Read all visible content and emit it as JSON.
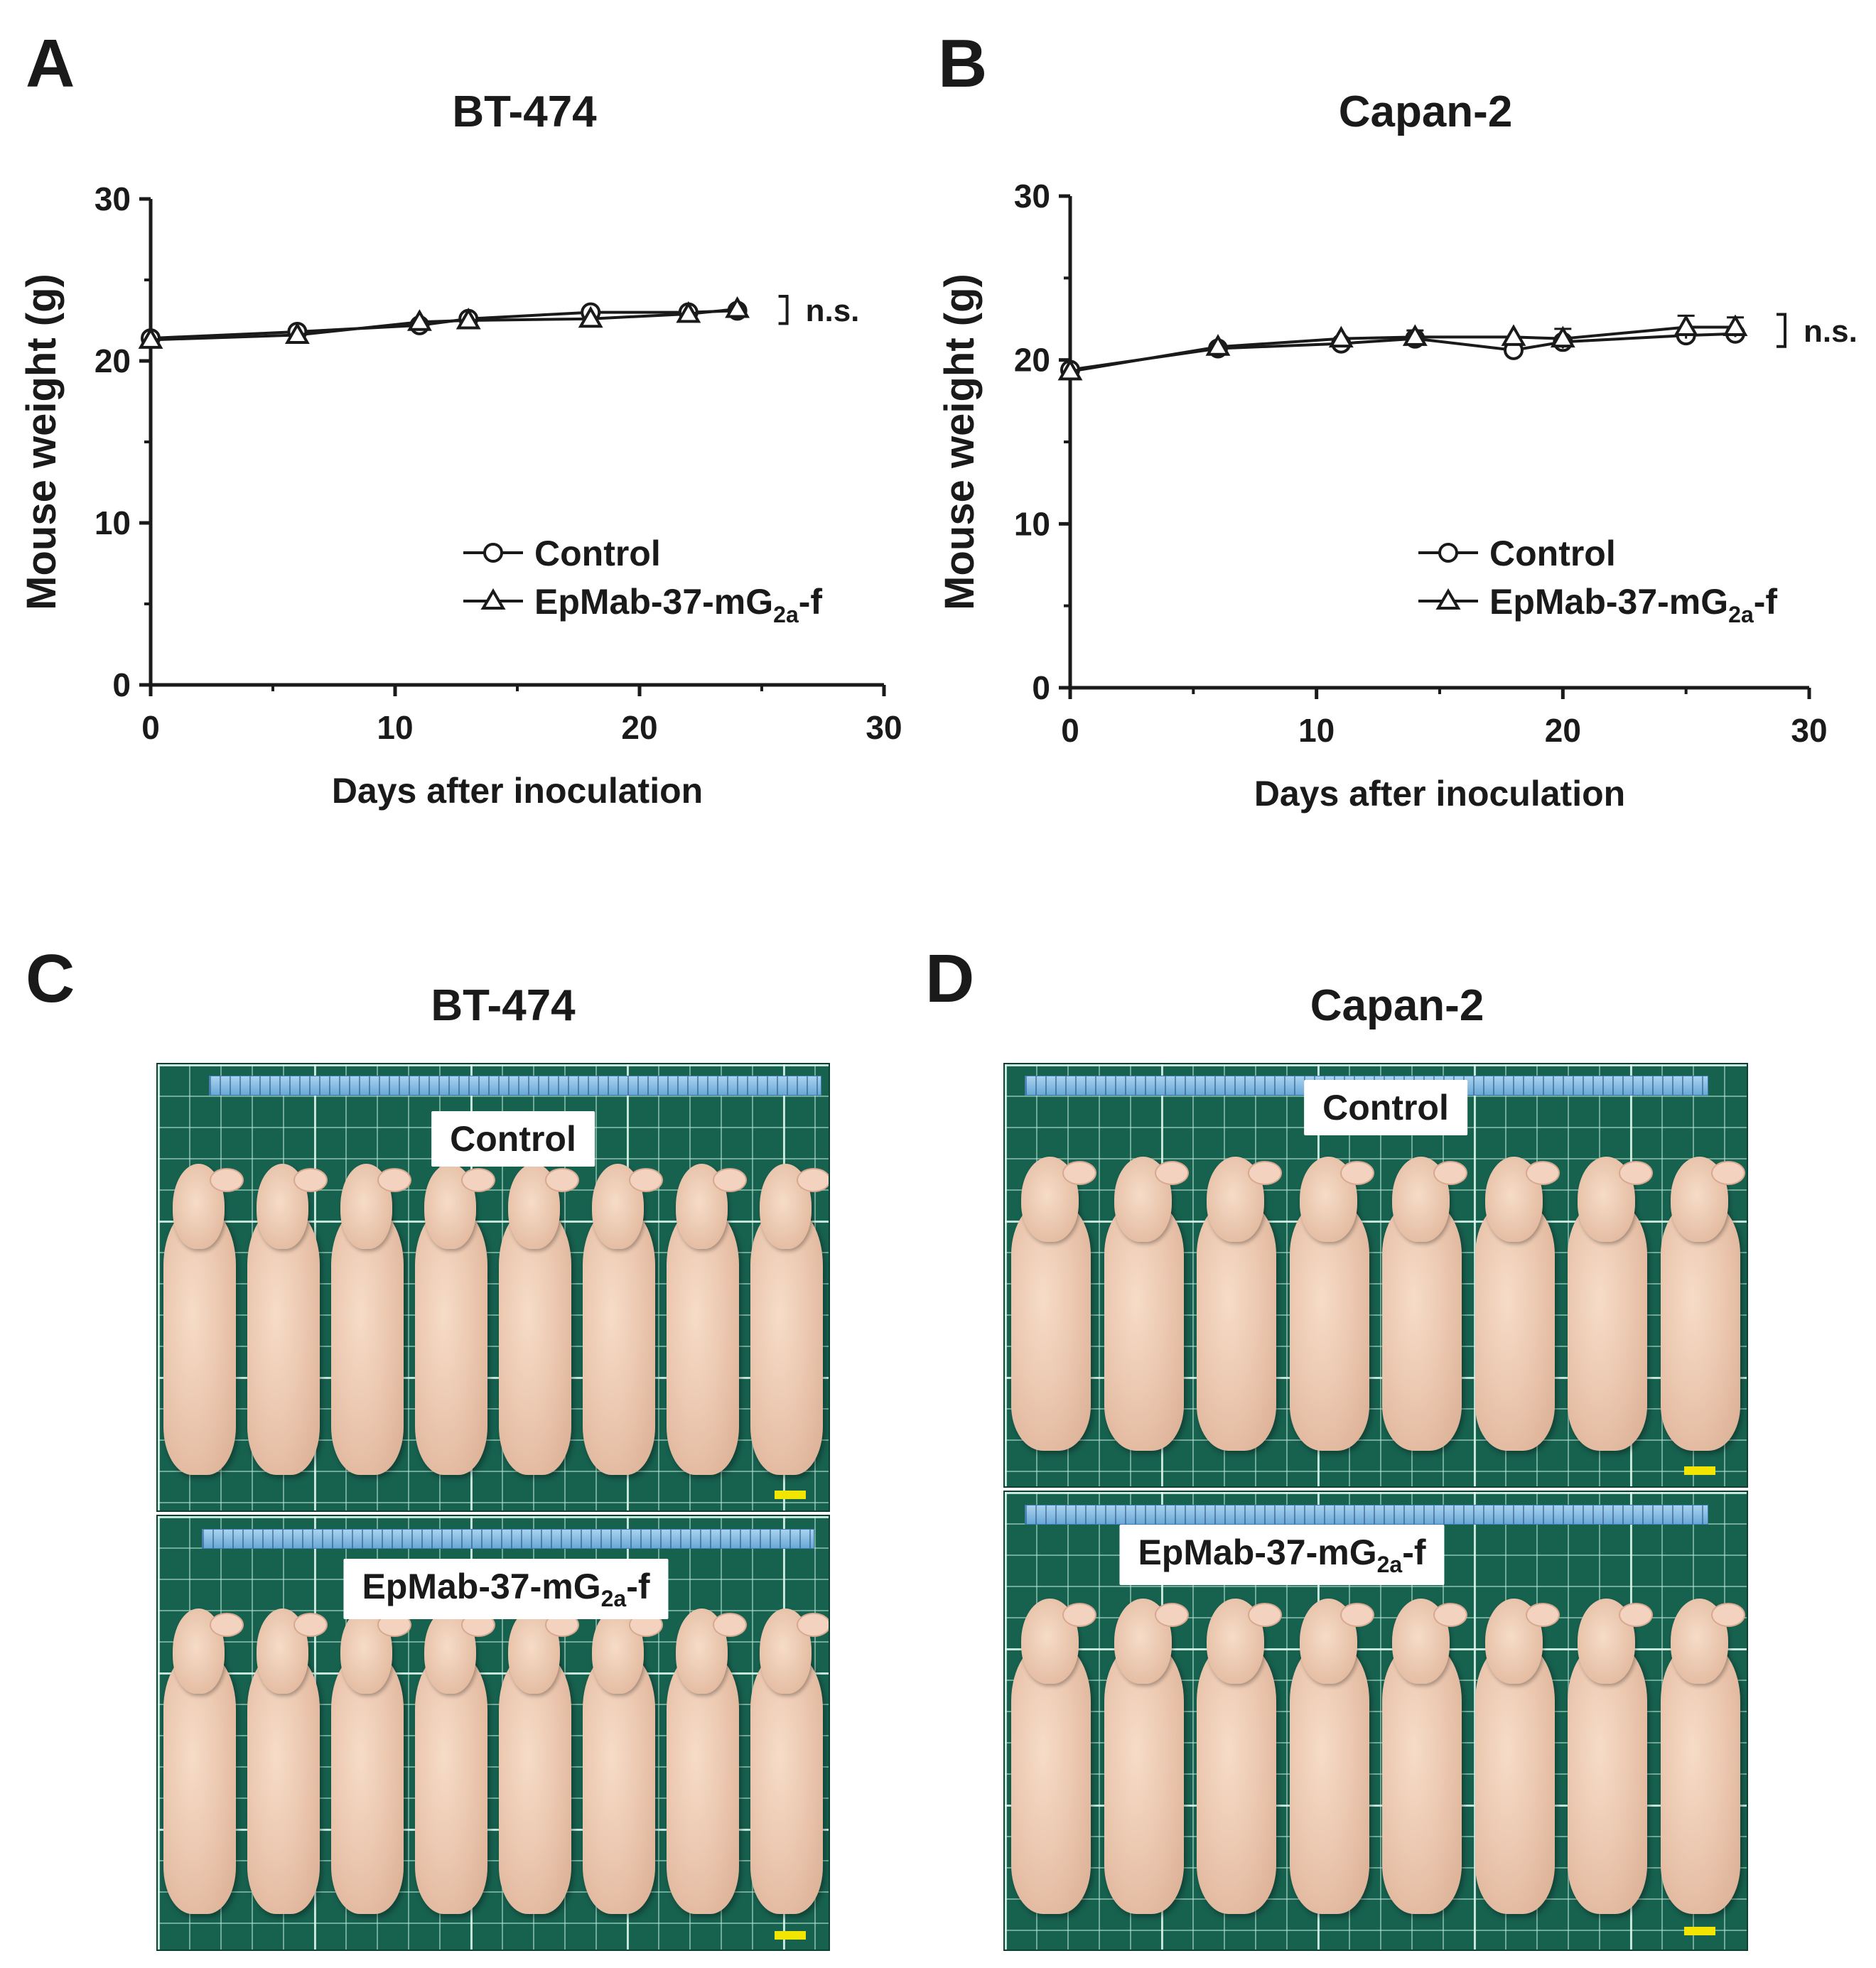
{
  "panels": {
    "a": "A",
    "b": "B",
    "c": "C",
    "d": "D"
  },
  "chart_data": [
    {
      "type": "line",
      "panel": "A",
      "title": "BT-474",
      "xlabel": "Days after inoculation",
      "ylabel": "Mouse weight (g)",
      "xlim": [
        0,
        30
      ],
      "ylim": [
        0,
        30
      ],
      "xticks": [
        0,
        10,
        20,
        30
      ],
      "yticks": [
        0,
        10,
        20,
        30
      ],
      "annotation": "n.s.",
      "series": [
        {
          "name": "Control",
          "marker": "circle",
          "x": [
            0,
            6,
            11,
            13,
            18,
            22,
            24
          ],
          "values": [
            21.4,
            21.8,
            22.2,
            22.6,
            23.0,
            23.0,
            23.1
          ]
        },
        {
          "name": "EpMab-37-mG2a-f",
          "marker": "triangle",
          "x": [
            0,
            6,
            11,
            13,
            18,
            22,
            24
          ],
          "values": [
            21.3,
            21.6,
            22.4,
            22.5,
            22.6,
            22.9,
            23.2
          ]
        }
      ]
    },
    {
      "type": "line",
      "panel": "B",
      "title": "Capan-2",
      "xlabel": "Days after inoculation",
      "ylabel": "Mouse weight (g)",
      "xlim": [
        0,
        30
      ],
      "ylim": [
        0,
        30
      ],
      "xticks": [
        0,
        10,
        20,
        30
      ],
      "yticks": [
        0,
        10,
        20,
        30
      ],
      "annotation": "n.s.",
      "series": [
        {
          "name": "Control",
          "marker": "circle",
          "x": [
            0,
            6,
            11,
            14,
            18,
            20,
            25,
            27
          ],
          "values": [
            19.4,
            20.7,
            21.0,
            21.3,
            20.6,
            21.1,
            21.5,
            21.6
          ]
        },
        {
          "name": "EpMab-37-mG2a-f",
          "marker": "triangle",
          "x": [
            0,
            6,
            11,
            14,
            18,
            20,
            25,
            27
          ],
          "values": [
            19.3,
            20.8,
            21.3,
            21.4,
            21.4,
            21.3,
            22.0,
            22.0
          ],
          "error": [
            0,
            0,
            0,
            0.4,
            0,
            0.6,
            0.7,
            0.6
          ]
        }
      ]
    }
  ],
  "legend": {
    "control": "Control",
    "treated_prefix": "EpMab-37-mG",
    "treated_sub": "2a",
    "treated_suffix": "-f"
  },
  "photos": {
    "c_title": "BT-474",
    "d_title": "Capan-2",
    "control_label": "Control",
    "treated_prefix": "EpMab-37-mG",
    "treated_sub": "2a",
    "treated_suffix": "-f",
    "mice_per_group": 8
  },
  "colors": {
    "mat": "#17614f",
    "skin": "#ecc8b0",
    "scale_bar": "#f2e600"
  }
}
